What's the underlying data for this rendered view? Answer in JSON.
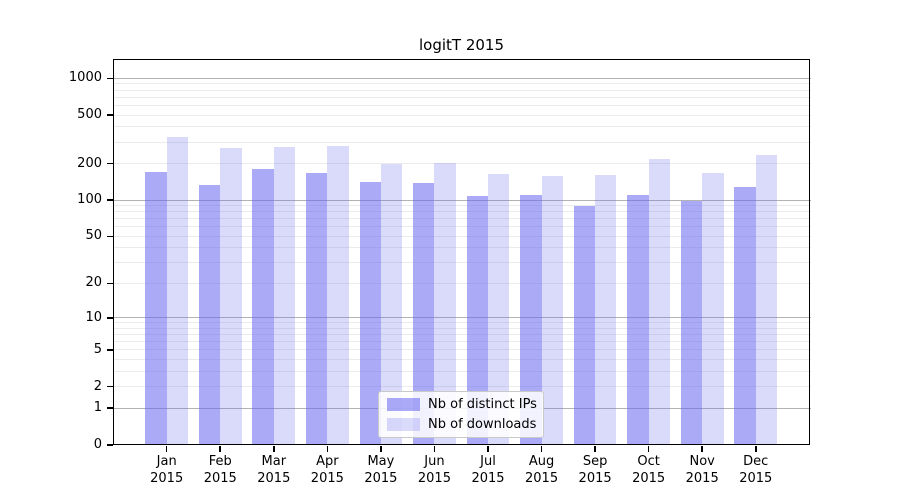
{
  "colors": {
    "bar_dark": "rgba(100,100,240,0.55)",
    "bar_light": "rgba(100,100,240,0.24)",
    "grid_minor": "#ebebeb",
    "grid_major": "#b3b3b3",
    "spine": "#000000",
    "background": "#ffffff"
  },
  "chart_data": {
    "type": "bar",
    "title": "logitT 2015",
    "categories": [
      "Jan",
      "Feb",
      "Mar",
      "Apr",
      "May",
      "Jun",
      "Jul",
      "Aug",
      "Sep",
      "Oct",
      "Nov",
      "Dec"
    ],
    "x_sublabel": "2015",
    "series": [
      {
        "name": "Nb of distinct IPs",
        "values": [
          169,
          134,
          179,
          166,
          142,
          138,
          109,
          110,
          90,
          110,
          99,
          128
        ]
      },
      {
        "name": "Nb of downloads",
        "values": [
          330,
          266,
          275,
          280,
          198,
          203,
          165,
          157,
          161,
          218,
          166,
          236
        ]
      }
    ],
    "yscale": "log1p",
    "yticks": [
      0,
      1,
      2,
      5,
      10,
      20,
      50,
      100,
      200,
      500,
      1000
    ],
    "major_grid_values": [
      1,
      10,
      100,
      1000
    ],
    "ylim": [
      0,
      1400
    ],
    "grid": true,
    "legend_position": "lower center"
  }
}
